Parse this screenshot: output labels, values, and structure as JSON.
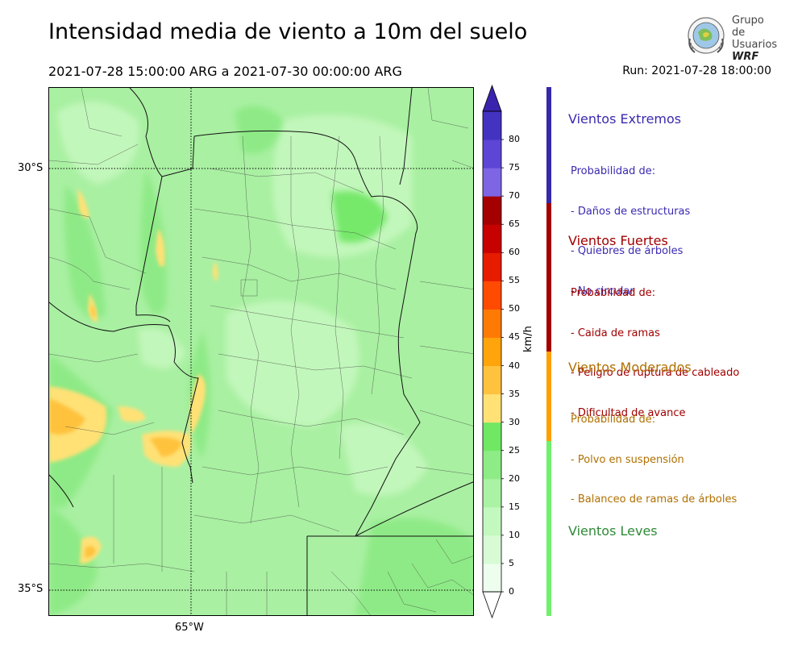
{
  "header": {
    "title": "Intensidad media de viento a 10m del suelo",
    "period": "2021-07-28 15:00:00 ARG  a  2021-07-30 00:00:00 ARG",
    "run": "Run: 2021-07-28 18:00:00"
  },
  "logo": {
    "line1": "Grupo de",
    "line2": "Usuarios",
    "line3": "WRF"
  },
  "map": {
    "lat_labels": [
      "30°S",
      "35°S"
    ],
    "lon_labels": [
      "65°W"
    ]
  },
  "colorbar": {
    "unit": "km/h",
    "ticks": [
      "0",
      "5",
      "10",
      "15",
      "20",
      "25",
      "30",
      "35",
      "40",
      "45",
      "50",
      "55",
      "60",
      "65",
      "70",
      "75",
      "80"
    ],
    "colors": [
      "#eefeee",
      "#d8fbd6",
      "#c3f8bf",
      "#aaf2a4",
      "#8eec86",
      "#70e864",
      "#ffe176",
      "#ffc23e",
      "#ffa40b",
      "#ff7a04",
      "#ff4a01",
      "#e61b00",
      "#c70000",
      "#a50000",
      "#7e65e4",
      "#5d45d6",
      "#4433c1"
    ],
    "over_color": "#3a24ae"
  },
  "categories": [
    {
      "title": "Vientos Extremos",
      "color": "#3528aa",
      "text_color": "#3a2ab0",
      "lines": [
        "Probabilidad de:",
        "- Daños de estructuras",
        "- Quiebres de árboles",
        "- No circular"
      ]
    },
    {
      "title": "Vientos Fuertes",
      "color": "#a30000",
      "text_color": "#a00000",
      "lines": [
        "Probabilidad de:",
        "- Caida de ramas",
        "- Peligro de ruptura de cableado",
        "- Dificultad de avance"
      ]
    },
    {
      "title": "Vientos Moderados",
      "color": "#ff9f00",
      "text_color": "#b07000",
      "lines": [
        "Probabilidad de:",
        "- Polvo en suspensión",
        "- Balanceo de ramas de árboles"
      ]
    },
    {
      "title": "Vientos Leves",
      "color": "#70f06b",
      "text_color": "#2f8a36",
      "lines": []
    }
  ]
}
